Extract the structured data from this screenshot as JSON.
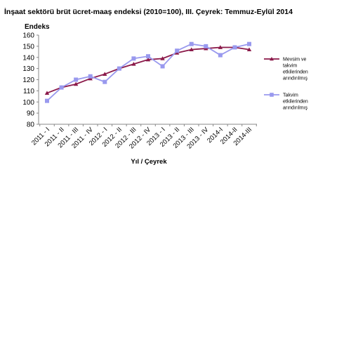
{
  "chart_data": {
    "type": "line",
    "title": "İnşaat sektörü  brüt ücret-maaş  endeksi (2010=100),  III. Çeyrek:  Temmuz-Eylül 2014",
    "ylabel": "Endeks",
    "xlabel": "Yıl / Çeyrek",
    "ylim": [
      80,
      160
    ],
    "yticks": [
      80,
      90,
      100,
      110,
      120,
      130,
      140,
      150,
      160
    ],
    "grid": false,
    "legend_position": "right",
    "categories": [
      "2011 - I",
      "2011 - II",
      "2011 - III",
      "2011 - IV",
      "2012 - I",
      "2012 - II",
      "2012 - III",
      "2012 - IV",
      "2013 - I",
      "2013 - II",
      "2013 - III",
      "2013 - IV",
      "2014-I",
      "2014-II",
      "2014-III"
    ],
    "series": [
      {
        "name": [
          "Mevsim ve",
          "takvim",
          "etkilerinden",
          "arındırılmış"
        ],
        "color": "#8b1a4a",
        "marker": "triangle",
        "values": [
          108,
          113,
          116,
          121,
          125,
          130,
          134,
          138,
          139,
          144,
          147,
          148,
          149,
          149,
          147
        ]
      },
      {
        "name": [
          "Takvim",
          "etkilerinden",
          "arındırılmış"
        ],
        "color": "#9999ee",
        "marker": "square",
        "values": [
          101,
          113,
          120,
          123,
          118,
          130,
          139,
          141,
          132,
          146,
          152,
          150,
          142,
          149,
          152
        ]
      }
    ]
  }
}
